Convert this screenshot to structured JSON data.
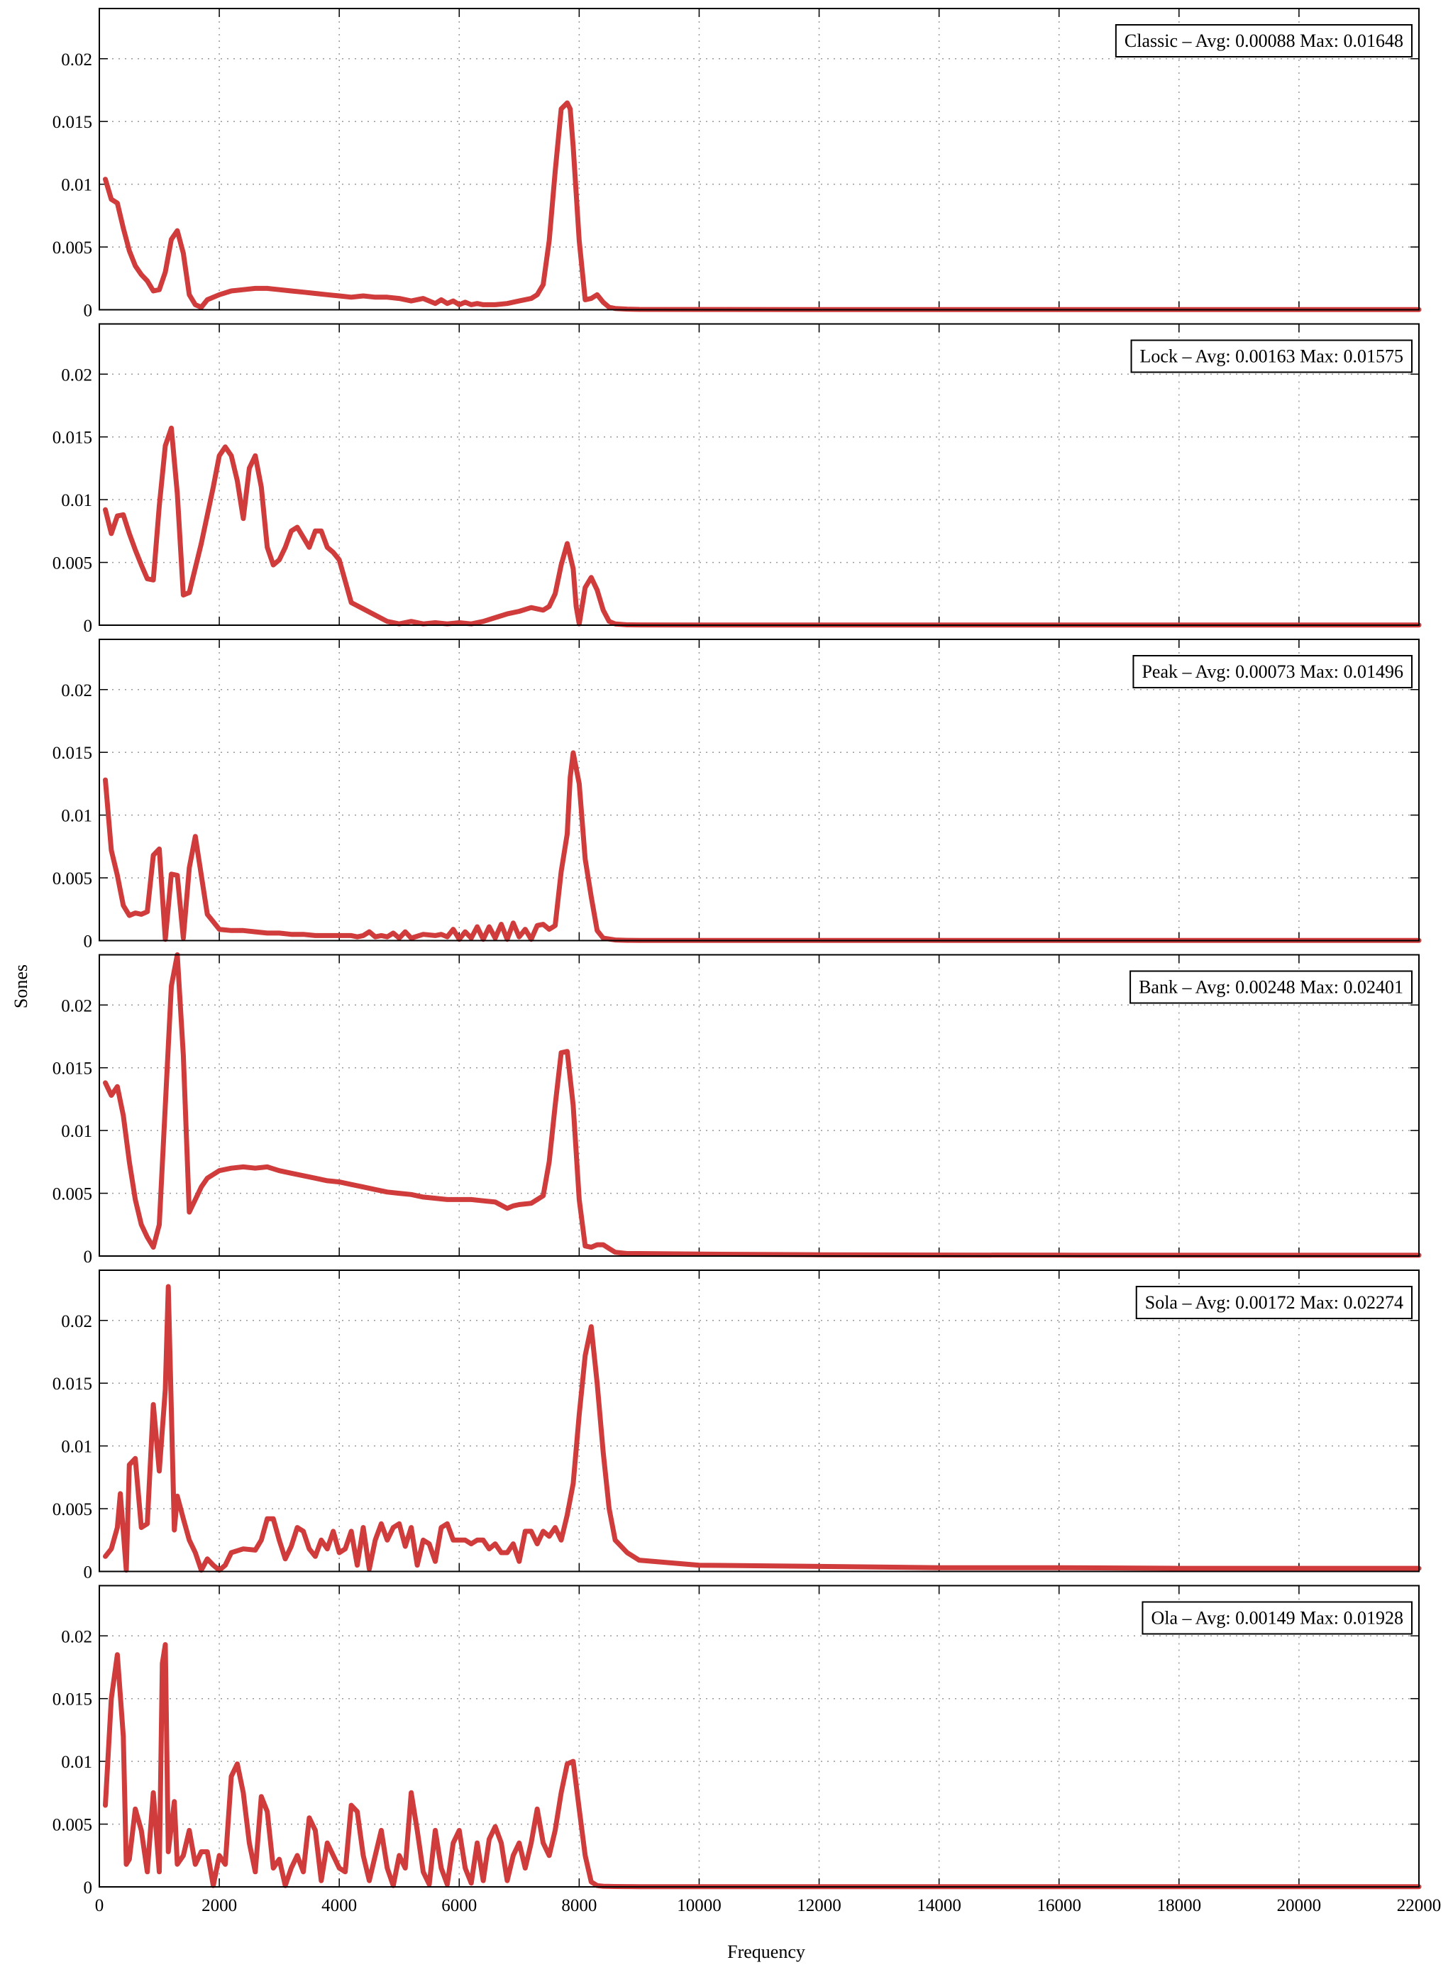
{
  "figure": {
    "ylabel": "Sones",
    "xlabel": "Frequency",
    "series_color": "#d03b3b",
    "grid": true
  },
  "chart_data": [
    {
      "type": "line",
      "legend": "Classic – Avg: 0.00088 Max: 0.01648",
      "ylim": [
        0,
        0.024
      ],
      "xlim": [
        0,
        22000
      ],
      "yticks": [
        "0",
        "0.005",
        "0.01",
        "0.015",
        "0.02"
      ],
      "xticks": [],
      "x": [
        100,
        200,
        300,
        400,
        500,
        600,
        700,
        800,
        900,
        1000,
        1100,
        1200,
        1300,
        1400,
        1500,
        1600,
        1700,
        1800,
        2000,
        2200,
        2400,
        2600,
        2800,
        3000,
        3200,
        3400,
        3600,
        3800,
        4000,
        4200,
        4400,
        4600,
        4800,
        5000,
        5200,
        5400,
        5600,
        5700,
        5800,
        5900,
        6000,
        6100,
        6200,
        6300,
        6400,
        6600,
        6800,
        7000,
        7200,
        7300,
        7400,
        7500,
        7600,
        7700,
        7800,
        7850,
        7900,
        8000,
        8100,
        8200,
        8300,
        8400,
        8500,
        8600,
        8800,
        9000,
        10000,
        12000,
        14000,
        16000,
        18000,
        20000,
        22000
      ],
      "y": [
        0.0104,
        0.0088,
        0.0085,
        0.0065,
        0.0047,
        0.0035,
        0.0028,
        0.0023,
        0.0015,
        0.0016,
        0.003,
        0.0056,
        0.0063,
        0.0045,
        0.0012,
        0.0004,
        0.0002,
        0.0008,
        0.0012,
        0.0015,
        0.0016,
        0.0017,
        0.0017,
        0.0016,
        0.0015,
        0.0014,
        0.0013,
        0.0012,
        0.0011,
        0.001,
        0.0011,
        0.001,
        0.001,
        0.0009,
        0.0007,
        0.0009,
        0.0005,
        0.0008,
        0.0005,
        0.0007,
        0.0004,
        0.0006,
        0.0004,
        0.0005,
        0.0004,
        0.0004,
        0.0005,
        0.0007,
        0.0009,
        0.0012,
        0.002,
        0.0055,
        0.011,
        0.016,
        0.01648,
        0.016,
        0.013,
        0.0055,
        0.0008,
        0.0009,
        0.0012,
        0.0006,
        0.0002,
        0.0001,
        5e-05,
        3e-05,
        2e-05,
        1e-05,
        1e-05,
        1e-05,
        1e-05,
        1e-05,
        1e-05
      ]
    },
    {
      "type": "line",
      "legend": "Lock – Avg: 0.00163 Max: 0.01575",
      "ylim": [
        0,
        0.024
      ],
      "xlim": [
        0,
        22000
      ],
      "yticks": [
        "0",
        "0.005",
        "0.01",
        "0.015",
        "0.02"
      ],
      "xticks": [],
      "x": [
        100,
        200,
        300,
        400,
        500,
        600,
        700,
        800,
        900,
        1000,
        1100,
        1200,
        1300,
        1400,
        1500,
        1700,
        1900,
        2000,
        2100,
        2200,
        2300,
        2400,
        2500,
        2600,
        2700,
        2800,
        2900,
        3000,
        3100,
        3200,
        3300,
        3400,
        3500,
        3600,
        3700,
        3800,
        3900,
        4000,
        4200,
        4400,
        4600,
        4800,
        5000,
        5200,
        5400,
        5600,
        5800,
        6000,
        6200,
        6400,
        6600,
        6800,
        7000,
        7200,
        7400,
        7500,
        7600,
        7700,
        7800,
        7900,
        7950,
        8000,
        8100,
        8200,
        8300,
        8400,
        8500,
        8600,
        8800,
        9000,
        10000,
        12000,
        14000,
        16000,
        18000,
        20000,
        22000
      ],
      "y": [
        0.0092,
        0.0073,
        0.0087,
        0.0088,
        0.0073,
        0.006,
        0.0048,
        0.0037,
        0.0036,
        0.0095,
        0.0143,
        0.0157,
        0.0105,
        0.0024,
        0.0026,
        0.0065,
        0.011,
        0.0135,
        0.0142,
        0.0135,
        0.0115,
        0.0085,
        0.0125,
        0.0135,
        0.011,
        0.0062,
        0.0048,
        0.0052,
        0.0062,
        0.0075,
        0.0078,
        0.007,
        0.0062,
        0.0075,
        0.0075,
        0.0062,
        0.0058,
        0.0052,
        0.0018,
        0.0013,
        0.0008,
        0.0003,
        0.0001,
        0.0003,
        0.0001,
        0.0002,
        0.0001,
        0.0002,
        0.0001,
        0.0003,
        0.0006,
        0.0009,
        0.0011,
        0.0014,
        0.0012,
        0.0015,
        0.0025,
        0.0048,
        0.0065,
        0.0045,
        0.0015,
        0.0001,
        0.003,
        0.0038,
        0.0028,
        0.0012,
        0.0003,
        0.0001,
        3e-05,
        2e-05,
        1e-05,
        1e-05,
        1e-05,
        1e-05,
        1e-05,
        1e-05,
        1e-05
      ]
    },
    {
      "type": "line",
      "legend": "Peak – Avg: 0.00073 Max: 0.01496",
      "ylim": [
        0,
        0.024
      ],
      "xlim": [
        0,
        22000
      ],
      "yticks": [
        "0",
        "0.005",
        "0.01",
        "0.015",
        "0.02"
      ],
      "xticks": [],
      "x": [
        100,
        200,
        300,
        400,
        500,
        600,
        700,
        800,
        900,
        1000,
        1100,
        1200,
        1300,
        1400,
        1500,
        1600,
        1800,
        2000,
        2200,
        2400,
        2600,
        2800,
        3000,
        3200,
        3400,
        3600,
        3800,
        4000,
        4200,
        4300,
        4400,
        4500,
        4600,
        4700,
        4800,
        4900,
        5000,
        5100,
        5200,
        5400,
        5600,
        5700,
        5800,
        5900,
        6000,
        6100,
        6200,
        6300,
        6400,
        6500,
        6600,
        6700,
        6800,
        6900,
        7000,
        7100,
        7200,
        7300,
        7400,
        7500,
        7600,
        7700,
        7800,
        7850,
        7900,
        8000,
        8100,
        8200,
        8300,
        8400,
        8600,
        8800,
        9000,
        10000,
        12000,
        14000,
        16000,
        18000,
        20000,
        22000
      ],
      "y": [
        0.0128,
        0.0072,
        0.0052,
        0.0028,
        0.002,
        0.0022,
        0.0021,
        0.0023,
        0.0068,
        0.0073,
        0.0001,
        0.0053,
        0.0052,
        0.0002,
        0.0058,
        0.0083,
        0.0021,
        0.0009,
        0.0008,
        0.0008,
        0.0007,
        0.0006,
        0.0006,
        0.0005,
        0.0005,
        0.0004,
        0.0004,
        0.0004,
        0.0004,
        0.0003,
        0.0004,
        0.0007,
        0.0003,
        0.0004,
        0.0003,
        0.0006,
        0.0002,
        0.0007,
        0.0002,
        0.0005,
        0.0004,
        0.0005,
        0.0003,
        0.0009,
        0.0001,
        0.0007,
        0.0002,
        0.0011,
        0.0001,
        0.0011,
        0.0002,
        0.0013,
        0.0001,
        0.0014,
        0.0003,
        0.0009,
        0.0001,
        0.0012,
        0.0013,
        0.0009,
        0.0012,
        0.0055,
        0.0085,
        0.013,
        0.01496,
        0.0125,
        0.0065,
        0.0035,
        0.0008,
        0.0002,
        5e-05,
        2e-05,
        1e-05,
        1e-05,
        1e-05,
        1e-05,
        1e-05,
        1e-05,
        1e-05,
        1e-05
      ]
    },
    {
      "type": "line",
      "legend": "Bank – Avg: 0.00248 Max: 0.02401",
      "ylim": [
        0,
        0.024
      ],
      "xlim": [
        0,
        22000
      ],
      "yticks": [
        "0",
        "0.005",
        "0.01",
        "0.015",
        "0.02"
      ],
      "xticks": [],
      "x": [
        100,
        200,
        300,
        400,
        500,
        600,
        700,
        800,
        900,
        1000,
        1100,
        1200,
        1300,
        1400,
        1500,
        1600,
        1700,
        1800,
        2000,
        2200,
        2400,
        2600,
        2800,
        3000,
        3200,
        3400,
        3600,
        3800,
        4000,
        4200,
        4400,
        4600,
        4800,
        5000,
        5200,
        5400,
        5600,
        5800,
        6000,
        6200,
        6400,
        6600,
        6800,
        6900,
        7000,
        7200,
        7300,
        7400,
        7500,
        7600,
        7700,
        7800,
        7900,
        8000,
        8100,
        8200,
        8300,
        8400,
        8500,
        8600,
        8800,
        9000,
        10000,
        12000,
        14000,
        16000,
        18000,
        20000,
        22000
      ],
      "y": [
        0.0138,
        0.0128,
        0.0135,
        0.0112,
        0.0075,
        0.0045,
        0.0025,
        0.0015,
        0.0007,
        0.0025,
        0.012,
        0.0215,
        0.024,
        0.016,
        0.0035,
        0.0045,
        0.0055,
        0.0062,
        0.0068,
        0.007,
        0.0071,
        0.007,
        0.0071,
        0.0068,
        0.0066,
        0.0064,
        0.0062,
        0.006,
        0.0059,
        0.0057,
        0.0055,
        0.0053,
        0.0051,
        0.005,
        0.0049,
        0.0047,
        0.0046,
        0.0045,
        0.0045,
        0.0045,
        0.0044,
        0.0043,
        0.0038,
        0.004,
        0.0041,
        0.0042,
        0.0045,
        0.0048,
        0.0075,
        0.012,
        0.0162,
        0.0163,
        0.012,
        0.0045,
        0.0008,
        0.0007,
        0.0009,
        0.0009,
        0.0006,
        0.0003,
        0.0002,
        0.0002,
        0.00015,
        0.0001,
        8e-05,
        7e-05,
        6e-05,
        6e-05,
        6e-05
      ]
    },
    {
      "type": "line",
      "legend": "Sola – Avg: 0.00172 Max: 0.02274",
      "ylim": [
        0,
        0.024
      ],
      "xlim": [
        0,
        22000
      ],
      "yticks": [
        "0",
        "0.005",
        "0.01",
        "0.015",
        "0.02"
      ],
      "xticks": [],
      "x": [
        100,
        200,
        300,
        350,
        450,
        500,
        600,
        700,
        800,
        900,
        1000,
        1100,
        1150,
        1250,
        1300,
        1400,
        1500,
        1600,
        1700,
        1800,
        1900,
        2000,
        2100,
        2200,
        2400,
        2600,
        2700,
        2800,
        2900,
        3000,
        3100,
        3200,
        3300,
        3400,
        3500,
        3600,
        3700,
        3800,
        3900,
        4000,
        4100,
        4200,
        4300,
        4400,
        4500,
        4600,
        4700,
        4800,
        4900,
        5000,
        5100,
        5200,
        5300,
        5400,
        5500,
        5600,
        5700,
        5800,
        5900,
        6000,
        6100,
        6200,
        6300,
        6400,
        6500,
        6600,
        6700,
        6800,
        6900,
        7000,
        7100,
        7200,
        7300,
        7400,
        7500,
        7600,
        7700,
        7800,
        7900,
        8000,
        8100,
        8200,
        8300,
        8400,
        8500,
        8600,
        8800,
        9000,
        10000,
        12000,
        14000,
        16000,
        18000,
        20000,
        22000
      ],
      "y": [
        0.0012,
        0.0018,
        0.0035,
        0.0062,
        0.0001,
        0.0085,
        0.009,
        0.0035,
        0.0038,
        0.0133,
        0.008,
        0.0145,
        0.0227,
        0.0033,
        0.006,
        0.0042,
        0.0025,
        0.0015,
        0.0001,
        0.001,
        0.0005,
        0.0001,
        0.0005,
        0.0015,
        0.0018,
        0.0017,
        0.0025,
        0.0042,
        0.0042,
        0.0025,
        0.001,
        0.002,
        0.0035,
        0.0032,
        0.0018,
        0.0012,
        0.0025,
        0.0018,
        0.0032,
        0.0015,
        0.0018,
        0.0032,
        0.0005,
        0.0035,
        0.0002,
        0.0025,
        0.0038,
        0.0025,
        0.0035,
        0.0038,
        0.002,
        0.0035,
        0.0005,
        0.0025,
        0.0022,
        0.0008,
        0.0035,
        0.0038,
        0.0025,
        0.0025,
        0.0025,
        0.0022,
        0.0025,
        0.0025,
        0.0018,
        0.0022,
        0.0015,
        0.0015,
        0.0022,
        0.0008,
        0.0032,
        0.0032,
        0.0022,
        0.0032,
        0.0028,
        0.0035,
        0.0025,
        0.0045,
        0.007,
        0.0125,
        0.0172,
        0.0195,
        0.015,
        0.0095,
        0.005,
        0.0025,
        0.0015,
        0.0009,
        0.0005,
        0.0004,
        0.0003,
        0.0003,
        0.00025,
        0.00025,
        0.00025
      ]
    },
    {
      "type": "line",
      "legend": "Ola – Avg: 0.00149 Max: 0.01928",
      "ylim": [
        0,
        0.024
      ],
      "xlim": [
        0,
        22000
      ],
      "yticks": [
        "0",
        "0.005",
        "0.01",
        "0.015",
        "0.02"
      ],
      "xticks": [
        "0",
        "2000",
        "4000",
        "6000",
        "8000",
        "10000",
        "12000",
        "14000",
        "16000",
        "18000",
        "20000",
        "22000"
      ],
      "x": [
        100,
        200,
        300,
        400,
        450,
        500,
        600,
        700,
        800,
        900,
        1000,
        1050,
        1100,
        1150,
        1250,
        1300,
        1400,
        1500,
        1600,
        1700,
        1800,
        1900,
        2000,
        2100,
        2200,
        2300,
        2400,
        2500,
        2600,
        2700,
        2800,
        2900,
        3000,
        3100,
        3200,
        3300,
        3400,
        3500,
        3600,
        3700,
        3800,
        3900,
        4000,
        4100,
        4200,
        4300,
        4400,
        4500,
        4600,
        4700,
        4800,
        4900,
        5000,
        5100,
        5200,
        5300,
        5400,
        5500,
        5600,
        5700,
        5800,
        5900,
        6000,
        6100,
        6200,
        6300,
        6400,
        6500,
        6600,
        6700,
        6800,
        6900,
        7000,
        7100,
        7200,
        7300,
        7400,
        7500,
        7600,
        7700,
        7800,
        7900,
        8000,
        8100,
        8200,
        8300,
        8400,
        8600,
        8800,
        9000,
        10000,
        12000,
        14000,
        16000,
        18000,
        20000,
        22000
      ],
      "y": [
        0.0065,
        0.015,
        0.0185,
        0.012,
        0.0018,
        0.0022,
        0.0062,
        0.0045,
        0.0012,
        0.0075,
        0.0012,
        0.0178,
        0.0193,
        0.0028,
        0.0068,
        0.0018,
        0.0025,
        0.0045,
        0.0018,
        0.0028,
        0.0028,
        0.0001,
        0.0025,
        0.0018,
        0.0088,
        0.0098,
        0.0075,
        0.0035,
        0.0012,
        0.0072,
        0.006,
        0.0015,
        0.0022,
        0.0001,
        0.0015,
        0.0025,
        0.0012,
        0.0055,
        0.0045,
        0.0005,
        0.0035,
        0.0025,
        0.0015,
        0.0012,
        0.0065,
        0.006,
        0.0025,
        0.0005,
        0.0025,
        0.0045,
        0.0015,
        0.0001,
        0.0025,
        0.0015,
        0.0075,
        0.0045,
        0.0012,
        0.0002,
        0.0045,
        0.0015,
        0.0002,
        0.0035,
        0.0045,
        0.0015,
        0.0003,
        0.0035,
        0.0005,
        0.0038,
        0.0048,
        0.0035,
        0.0005,
        0.0025,
        0.0035,
        0.0015,
        0.0035,
        0.0062,
        0.0035,
        0.0025,
        0.0045,
        0.0075,
        0.0098,
        0.01,
        0.0062,
        0.0025,
        0.0004,
        0.0001,
        5e-05,
        3e-05,
        2e-05,
        1e-05,
        1e-05,
        1e-05,
        1e-05,
        1e-05,
        1e-05,
        1e-05,
        1e-05
      ]
    }
  ]
}
